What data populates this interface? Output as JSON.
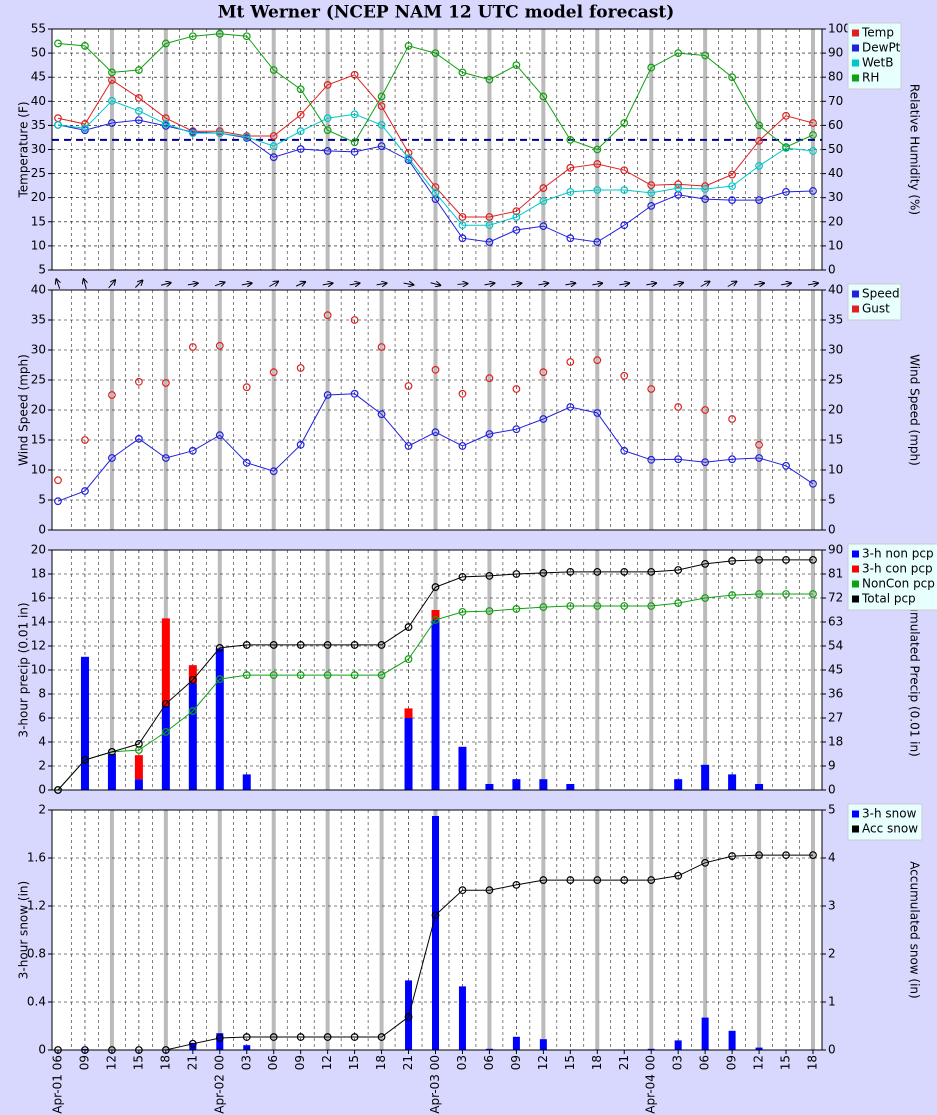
{
  "chart_data": [
    {
      "type": "line",
      "title": "Mt Werner (NCEP NAM 12 UTC model forecast)",
      "y_label": "Temperature (F)",
      "y2_label": "Relative Humidity (%)",
      "ylim": [
        5,
        55
      ],
      "yticks": [
        5,
        10,
        15,
        20,
        25,
        30,
        35,
        40,
        45,
        50,
        55
      ],
      "y2lim": [
        0,
        100
      ],
      "y2ticks": [
        0,
        10,
        20,
        30,
        40,
        50,
        60,
        70,
        80,
        90,
        100
      ],
      "grid": true,
      "legend": "right",
      "reference_line": {
        "value": 32,
        "color": "#000090"
      },
      "series": [
        {
          "name": "Temp",
          "color": "#e02020",
          "kind": "line",
          "values": [
            36.5,
            35.3,
            44.4,
            40.7,
            36.5,
            33.8,
            33.8,
            32.8,
            32.8,
            37.2,
            43.4,
            45.5,
            39.0,
            29.3,
            22.2,
            16.0,
            16.0,
            17.2,
            22.0,
            26.2,
            27.0,
            25.7,
            22.6,
            22.8,
            22.4,
            24.8,
            31.8,
            37.0,
            35.5
          ]
        },
        {
          "name": "DewPt",
          "color": "#2020e0",
          "kind": "line",
          "values": [
            35.1,
            34.0,
            35.5,
            36.1,
            34.9,
            33.6,
            33.4,
            32.4,
            28.4,
            30.1,
            29.7,
            29.5,
            30.7,
            27.8,
            19.7,
            11.6,
            10.8,
            13.3,
            14.1,
            11.6,
            10.8,
            14.3,
            18.3,
            20.6,
            19.7,
            19.5,
            19.5,
            21.2,
            21.4
          ]
        },
        {
          "name": "WetB",
          "color": "#00c8c8",
          "kind": "line",
          "values": [
            35.1,
            34.4,
            40.1,
            38.0,
            35.3,
            33.4,
            33.4,
            32.6,
            30.7,
            33.8,
            36.5,
            37.3,
            35.1,
            28.2,
            21.0,
            14.3,
            14.3,
            16.0,
            19.3,
            21.2,
            21.6,
            21.6,
            21.0,
            22.0,
            21.8,
            22.4,
            26.6,
            30.3,
            29.7
          ]
        },
        {
          "name": "RH",
          "color": "#10a010",
          "kind": "line",
          "axis": "y2",
          "values": [
            94,
            93,
            82,
            83,
            94,
            97,
            98,
            97,
            83,
            75,
            58,
            53,
            72,
            93,
            90,
            82,
            79,
            85,
            72,
            54,
            50,
            61,
            84,
            90,
            89,
            80,
            60,
            51,
            56
          ]
        }
      ]
    },
    {
      "type": "line",
      "y_label": "Wind Speed (mph)",
      "y2_label": "Wind Speed (mph)",
      "ylim": [
        0,
        40
      ],
      "yticks": [
        0,
        5,
        10,
        15,
        20,
        25,
        30,
        35,
        40
      ],
      "y2lim": [
        0,
        40
      ],
      "y2ticks": [
        0,
        5,
        10,
        15,
        20,
        25,
        30,
        35,
        40
      ],
      "grid": true,
      "legend": "right",
      "wind_arrows_deg": [
        340,
        345,
        40,
        45,
        75,
        80,
        70,
        80,
        60,
        65,
        80,
        80,
        80,
        100,
        105,
        85,
        80,
        80,
        80,
        80,
        80,
        80,
        80,
        75,
        60,
        60,
        80,
        80,
        80
      ],
      "series": [
        {
          "name": "Speed",
          "color": "#2020e0",
          "kind": "line",
          "values": [
            4.8,
            6.5,
            12.0,
            15.2,
            12.0,
            13.2,
            15.8,
            11.2,
            9.8,
            14.2,
            22.5,
            22.7,
            19.3,
            14.0,
            16.3,
            14.0,
            16.0,
            16.8,
            18.5,
            20.5,
            19.5,
            13.2,
            11.7,
            11.8,
            11.3,
            11.8,
            12.0,
            10.7,
            7.7
          ]
        },
        {
          "name": "Gust",
          "color": "#e02020",
          "kind": "points",
          "values": [
            8.3,
            15.0,
            22.5,
            24.7,
            24.5,
            30.5,
            30.7,
            23.8,
            26.3,
            27.0,
            35.8,
            35.0,
            30.5,
            24.0,
            26.7,
            22.7,
            25.3,
            23.5,
            26.3,
            28.0,
            28.3,
            25.7,
            23.5,
            20.5,
            20.0,
            18.5,
            14.2,
            null,
            null
          ]
        }
      ]
    },
    {
      "type": "bar",
      "y_label": "3-hour precip (0.01 in)",
      "y2_label": "Accumulated Precip (0.01 in)",
      "ylim": [
        0,
        20
      ],
      "yticks": [
        0,
        2,
        4,
        6,
        8,
        10,
        12,
        14,
        16,
        18,
        20
      ],
      "y2lim": [
        0,
        90
      ],
      "y2ticks": [
        0,
        9,
        18,
        27,
        36,
        45,
        54,
        63,
        72,
        81,
        90
      ],
      "grid": true,
      "legend": "right",
      "stacked": true,
      "series": [
        {
          "name": "3-h non pcp",
          "color": "#0000ff",
          "kind": "bar",
          "values": [
            0,
            11.1,
            3.0,
            0.9,
            7.0,
            8.9,
            11.8,
            1.3,
            0,
            0,
            0,
            0,
            0,
            6.0,
            14.2,
            3.6,
            0.5,
            0.9,
            0.9,
            0.5,
            0,
            0,
            0,
            0.9,
            2.1,
            1.3,
            0.5,
            0,
            0
          ]
        },
        {
          "name": "3-h con pcp",
          "color": "#ff0000",
          "kind": "bar",
          "values": [
            0,
            0,
            0,
            2.0,
            7.3,
            1.5,
            0,
            0,
            0,
            0,
            0,
            0,
            0,
            0.8,
            0.8,
            0,
            0,
            0,
            0,
            0,
            0,
            0,
            0,
            0,
            0,
            0,
            0,
            0,
            0
          ]
        },
        {
          "name": "NonCon pcp",
          "color": "#10a010",
          "kind": "line",
          "axis": "y2",
          "values": [
            0,
            11.3,
            14.3,
            15.0,
            21.8,
            29.6,
            41.6,
            43.1,
            43.1,
            43.1,
            43.1,
            43.1,
            43.1,
            49.1,
            63.8,
            66.8,
            67.1,
            67.9,
            68.6,
            69.0,
            69.0,
            69.0,
            69.0,
            70.1,
            72.0,
            73.1,
            73.5,
            73.5,
            73.5
          ]
        },
        {
          "name": "Total pcp",
          "color": "#000000",
          "kind": "line",
          "axis": "y2",
          "values": [
            0,
            11.3,
            14.3,
            17.3,
            32.3,
            41.3,
            53.3,
            54.4,
            54.4,
            54.4,
            54.4,
            54.4,
            54.4,
            61.1,
            76.1,
            79.9,
            80.3,
            81.0,
            81.4,
            81.8,
            81.8,
            81.8,
            81.8,
            82.5,
            84.8,
            85.9,
            86.3,
            86.3,
            86.3
          ]
        }
      ]
    },
    {
      "type": "bar",
      "y_label": "3-hour snow (in)",
      "y2_label": "Accumulated snow (in)",
      "ylim": [
        0,
        2
      ],
      "yticks": [
        0,
        0.4,
        0.8,
        1.2,
        1.6,
        2
      ],
      "y2lim": [
        0,
        5
      ],
      "y2ticks": [
        0,
        1,
        2,
        3,
        4,
        5
      ],
      "grid": true,
      "legend": "right",
      "categories": [
        "Apr-01 06",
        "09",
        "12",
        "15",
        "18",
        "21",
        "Apr-02 00",
        "03",
        "06",
        "09",
        "12",
        "15",
        "18",
        "21",
        "Apr-03 00",
        "03",
        "06",
        "09",
        "12",
        "15",
        "18",
        "21",
        "Apr-04 00",
        "03",
        "06",
        "09",
        "12",
        "15",
        "18"
      ],
      "series": [
        {
          "name": "3-h snow",
          "color": "#0000ff",
          "kind": "bar",
          "values": [
            0,
            0.01,
            0,
            0,
            0.005,
            0.06,
            0.14,
            0.04,
            0,
            0,
            0,
            0,
            0,
            0.58,
            1.95,
            0.53,
            0.01,
            0.11,
            0.09,
            0,
            0,
            0,
            0.01,
            0.08,
            0.27,
            0.16,
            0.02,
            0,
            0
          ]
        },
        {
          "name": "Acc snow",
          "color": "#000000",
          "kind": "line",
          "axis": "y2",
          "values": [
            0,
            0,
            0,
            0,
            0,
            0.13,
            0.25,
            0.27,
            0.27,
            0.27,
            0.27,
            0.27,
            0.27,
            0.69,
            2.81,
            3.33,
            3.33,
            3.44,
            3.54,
            3.54,
            3.54,
            3.54,
            3.54,
            3.63,
            3.9,
            4.04,
            4.06,
            4.06,
            4.06
          ]
        }
      ]
    }
  ]
}
